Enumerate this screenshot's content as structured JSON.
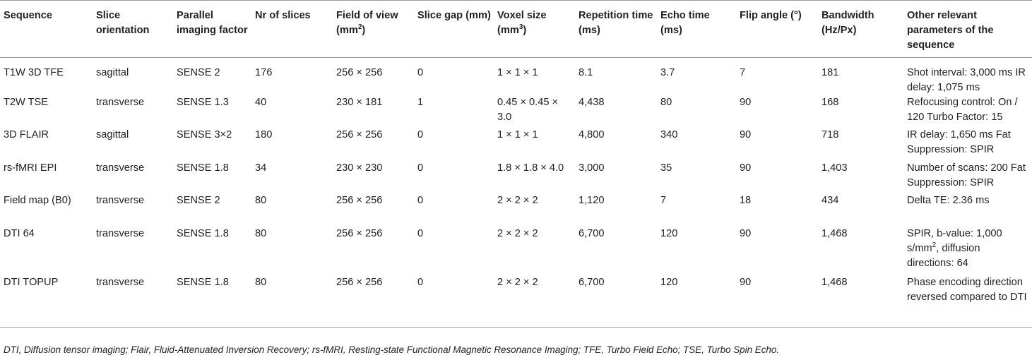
{
  "table": {
    "headers": [
      {
        "text": "Sequence"
      },
      {
        "text": "Slice orientation"
      },
      {
        "text": "Parallel imaging factor"
      },
      {
        "text": "Nr of slices"
      },
      {
        "text": "Field of view (mm",
        "sup": "2",
        "tail": ")"
      },
      {
        "text": "Slice gap (mm)"
      },
      {
        "text": "Voxel size (mm",
        "sup": "3",
        "tail": ")"
      },
      {
        "text": "Repetition time (ms)"
      },
      {
        "text": "Echo time (ms)"
      },
      {
        "text": "Flip angle (°)"
      },
      {
        "text": "Bandwidth (Hz/Px)"
      },
      {
        "text": "Other relevant parameters of the sequence"
      }
    ],
    "rows": [
      {
        "sequence": "T1W 3D TFE",
        "orientation": "sagittal",
        "parallel": "SENSE 2",
        "slices": "176",
        "fov": "256 × 256",
        "gap": "0",
        "voxel": "1 × 1 × 1",
        "tr": "8.1",
        "te": "3.7",
        "flip": "7",
        "bandwidth": "181",
        "other": "Shot interval: 3,000 ms IR delay: 1,075 ms"
      },
      {
        "sequence": "T2W TSE",
        "orientation": "transverse",
        "parallel": "SENSE 1.3",
        "slices": "40",
        "fov": "230 × 181",
        "gap": "1",
        "voxel": "0.45 × 0.45 × 3.0",
        "tr": "4,438",
        "te": "80",
        "flip": "90",
        "bandwidth": "168",
        "other": "Refocusing control: On / 120 Turbo Factor: 15"
      },
      {
        "sequence": "3D FLAIR",
        "orientation": "sagittal",
        "parallel": "SENSE 3×2",
        "slices": "180",
        "fov": "256 × 256",
        "gap": "0",
        "voxel": "1 × 1 × 1",
        "tr": "4,800",
        "te": "340",
        "flip": "90",
        "bandwidth": "718",
        "other": "IR delay: 1,650 ms Fat Suppression: SPIR"
      },
      {
        "sequence": "rs-fMRI EPI",
        "orientation": "transverse",
        "parallel": "SENSE 1.8",
        "slices": "34",
        "fov": "230 × 230",
        "gap": "0",
        "voxel": "1.8 × 1.8 × 4.0",
        "tr": "3,000",
        "te": "35",
        "flip": "90",
        "bandwidth": "1,403",
        "other": "Number of scans: 200 Fat Suppression: SPIR"
      },
      {
        "sequence": "Field map (B0)",
        "orientation": "transverse",
        "parallel": "SENSE 2",
        "slices": "80",
        "fov": "256 × 256",
        "gap": "0",
        "voxel": "2 × 2 × 2",
        "tr": "1,120",
        "te": "7",
        "flip": "18",
        "bandwidth": "434",
        "other": "Delta TE: 2.36 ms"
      },
      {
        "sequence": "DTI 64",
        "orientation": "transverse",
        "parallel": "SENSE 1.8",
        "slices": "80",
        "fov": "256 × 256",
        "gap": "0",
        "voxel": "2 × 2 × 2",
        "tr": "6,700",
        "te": "120",
        "flip": "90",
        "bandwidth": "1,468",
        "other": "SPIR, b-value: 1,000 s/mm",
        "other_sup": "2",
        "other_tail": ", diffusion directions: 64"
      },
      {
        "sequence": "DTI TOPUP",
        "orientation": "transverse",
        "parallel": "SENSE 1.8",
        "slices": "80",
        "fov": "256 × 256",
        "gap": "0",
        "voxel": "2 × 2 × 2",
        "tr": "6,700",
        "te": "120",
        "flip": "90",
        "bandwidth": "1,468",
        "other": "Phase encoding direction reversed compared to DTI"
      }
    ]
  },
  "footnote": "DTI, Diffusion tensor imaging; Flair, Fluid-Attenuated Inversion Recovery; rs-fMRI, Resting-state Functional Magnetic Resonance Imaging; TFE, Turbo Field Echo; TSE, Turbo Spin Echo."
}
